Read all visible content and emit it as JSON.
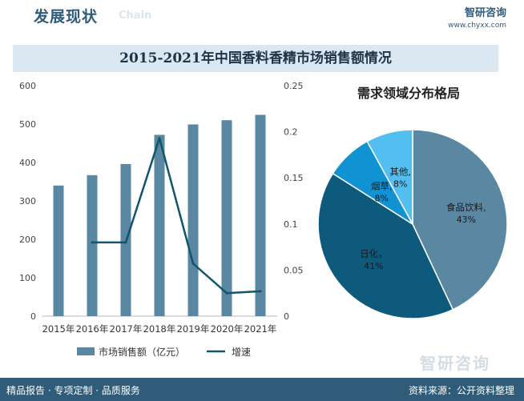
{
  "header": {
    "title": "发展现状",
    "subtitle": "Chain",
    "brand": "智研咨询",
    "url": "www.chyxx.com"
  },
  "colors": {
    "bar": "#5a87a1",
    "line": "#11546e",
    "pie_food": "#5a87a1",
    "pie_daily": "#0d5a7c",
    "pie_tobacco": "#1192d2",
    "pie_other": "#53bff0",
    "footer": "#2f5c78"
  },
  "chart_data": [
    {
      "type": "bar",
      "title": "2015-2021年中国香料香精市场销售额情况",
      "categories": [
        "2015年",
        "2016年",
        "2017年",
        "2018年",
        "2019年",
        "2020年",
        "2021年"
      ],
      "series": [
        {
          "name": "市场销售额（亿元）",
          "type": "bar",
          "axis": "left",
          "values": [
            340,
            367,
            396,
            472,
            499,
            510,
            524
          ]
        },
        {
          "name": "增速",
          "type": "line",
          "axis": "right",
          "values": [
            null,
            0.08,
            0.08,
            0.193,
            0.057,
            0.025,
            0.027
          ]
        }
      ],
      "left_axis": {
        "ylim": [
          0,
          600
        ],
        "ticks": [
          "0",
          "100",
          "200",
          "300",
          "400",
          "500",
          "600"
        ]
      },
      "right_axis": {
        "ylim": [
          0,
          0.25
        ],
        "ticks": [
          "0",
          "0.05",
          "0.1",
          "0.15",
          "0.2",
          "0.25"
        ]
      },
      "grid": false,
      "legend": "bottom"
    },
    {
      "type": "pie",
      "title": "需求领域分布格局",
      "slices": [
        {
          "name": "食品饮料",
          "value": 43,
          "label": "食品饮料,",
          "pct": "43%"
        },
        {
          "name": "日化",
          "value": 41,
          "label": "日化，",
          "pct": "41%"
        },
        {
          "name": "烟草",
          "value": 8,
          "label": "烟草,",
          "pct": "8%"
        },
        {
          "name": "其他",
          "value": 8,
          "label": "其他,",
          "pct": "8%"
        }
      ]
    }
  ],
  "footer": {
    "left": "精品报告 · 专项定制 · 品质服务",
    "right": "资料来源：公开资料整理",
    "watermark": "智研咨询"
  }
}
